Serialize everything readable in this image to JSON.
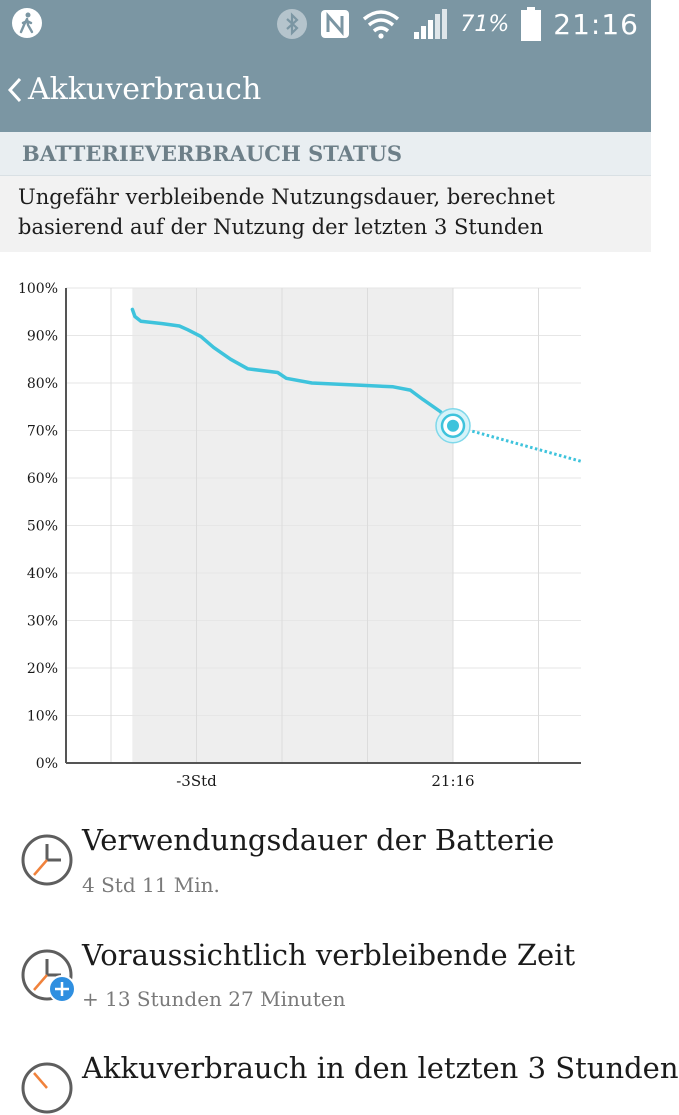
{
  "status_bar": {
    "battery_percent": "71%",
    "time": "21:16",
    "icons": [
      "pedometer-icon",
      "bluetooth-icon",
      "nfc-icon",
      "wifi-icon",
      "signal-icon",
      "battery-icon"
    ]
  },
  "app_bar": {
    "title": "Akkuverbrauch",
    "back_icon": "chevron-left-icon"
  },
  "section": {
    "heading": "BATTERIEVERBRAUCH STATUS",
    "description": "Ungefähr verbleibende Nutzungsdauer, berechnet basierend auf der Nutzung der letzten 3 Stunden"
  },
  "chart_data": {
    "type": "line",
    "y_ticks": [
      "100%",
      "90%",
      "80%",
      "70%",
      "60%",
      "50%",
      "40%",
      "30%",
      "20%",
      "10%",
      "0%"
    ],
    "x_tick_labels": [
      "-3Std",
      "21:16"
    ],
    "ylim": [
      0,
      100
    ],
    "grid": true,
    "series": [
      {
        "style": "solid",
        "color": "#3ec3dc",
        "x": [
          -3.75,
          -3.72,
          -3.65,
          -3.4,
          -3.2,
          -3.1,
          -2.95,
          -2.8,
          -2.6,
          -2.4,
          -2.05,
          -1.95,
          -1.65,
          -1.05,
          -0.7,
          -0.5,
          -0.35,
          -0.15,
          0.0
        ],
        "y": [
          95.5,
          94,
          93,
          92.5,
          92,
          91.2,
          89.8,
          87.5,
          85,
          83,
          82.2,
          81,
          80,
          79.5,
          79.2,
          78.5,
          76.5,
          74,
          71
        ]
      },
      {
        "style": "dotted",
        "color": "#3ec3dc",
        "x": [
          0.0,
          1.5
        ],
        "y": [
          71,
          63.5
        ]
      }
    ],
    "current_point": {
      "x": 0.0,
      "y": 71
    },
    "shaded_range_x": [
      -3.75,
      0.0
    ]
  },
  "items": [
    {
      "title": "Verwendungsdauer der Batterie",
      "subtitle": "4 Std 11 Min.",
      "icon": "clock-icon"
    },
    {
      "title": "Voraussichtlich verbleibende Zeit",
      "subtitle": "+ 13 Stunden 27 Minuten",
      "icon": "clock-plus-icon"
    },
    {
      "title": "Akkuverbrauch in den letzten 3 Stunden",
      "subtitle": "",
      "icon": "clock-icon"
    }
  ],
  "colors": {
    "app_bar": "#7b96a3",
    "accent": "#3ec3dc",
    "badge": "#2f8fe0"
  }
}
